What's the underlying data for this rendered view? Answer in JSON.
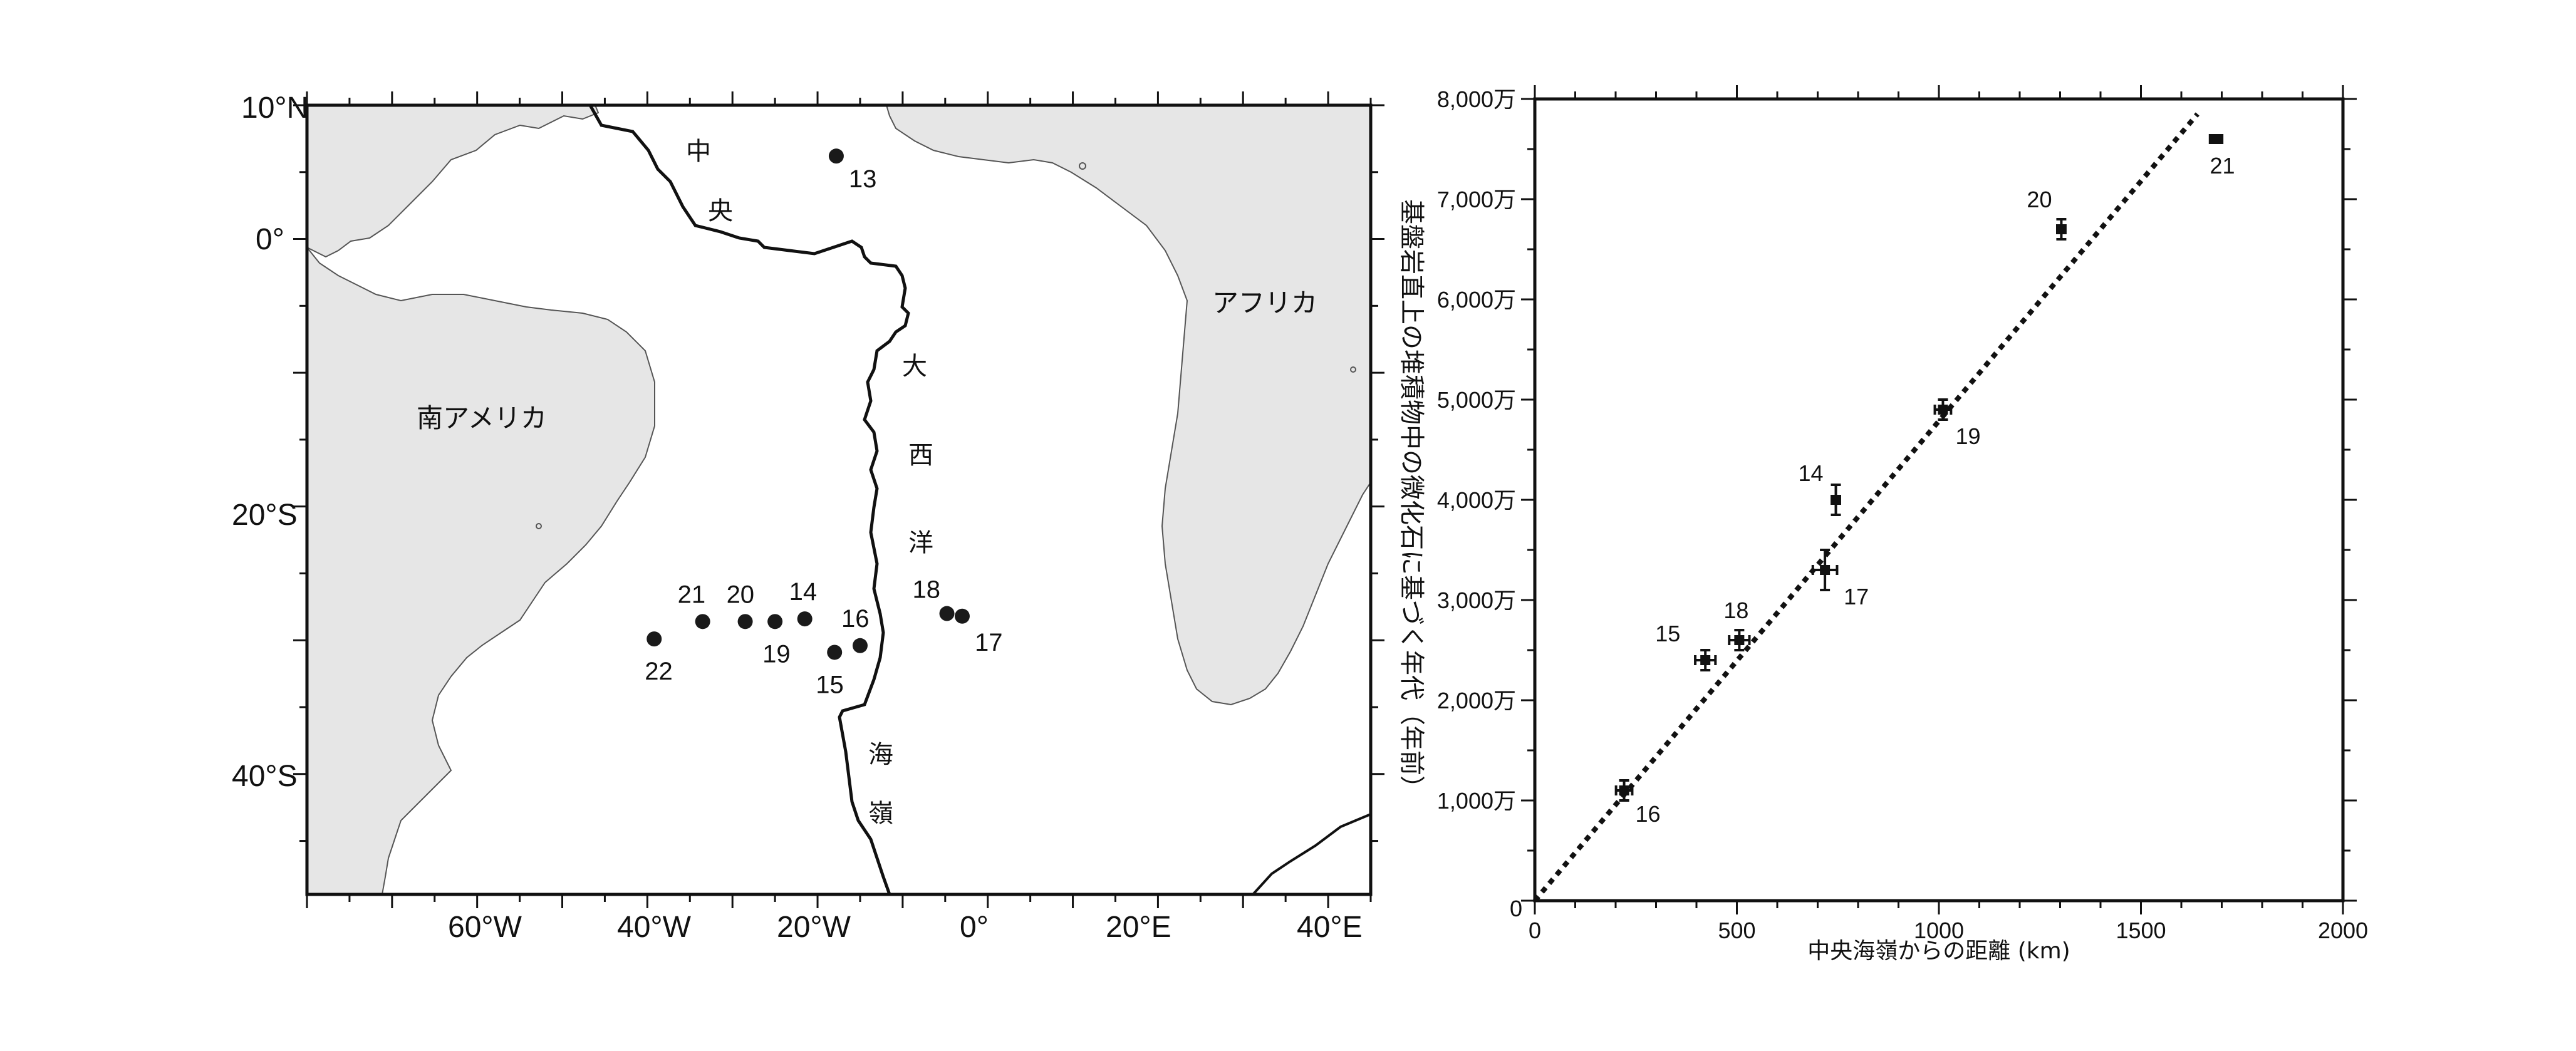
{
  "map": {
    "lat_labels": [
      "10°N",
      "0°",
      "20°S",
      "40°S"
    ],
    "lon_labels": [
      "60°W",
      "40°W",
      "20°W",
      "0°",
      "20°E",
      "40°E"
    ],
    "continent_labels": {
      "south_america": "南アメリカ",
      "africa": "アフリカ"
    },
    "ridge_label_chars": [
      "中",
      "央",
      "大",
      "西",
      "洋",
      "海",
      "嶺"
    ],
    "sites": [
      {
        "label": "13",
        "lon": -17.8,
        "lat": 6.2
      },
      {
        "label": "14",
        "lon": -21.5,
        "lat": -28.4
      },
      {
        "label": "15",
        "lon": -18.0,
        "lat": -30.9
      },
      {
        "label": "16",
        "lon": -15.0,
        "lat": -30.4
      },
      {
        "label": "17",
        "lon": -3.0,
        "lat": -28.2
      },
      {
        "label": "18",
        "lon": -4.8,
        "lat": -28.0
      },
      {
        "label": "19",
        "lon": -25.0,
        "lat": -28.6
      },
      {
        "label": "20",
        "lon": -28.5,
        "lat": -28.6
      },
      {
        "label": "21",
        "lon": -33.5,
        "lat": -28.6
      },
      {
        "label": "22",
        "lon": -39.2,
        "lat": -29.9
      }
    ]
  },
  "chart_data": {
    "type": "scatter",
    "xlabel": "中央海嶺からの距離 (km)",
    "ylabel": "基盤岩直上の堆積物中の微化石に基づく年代（年前）",
    "xlim": [
      0,
      2000
    ],
    "ylim": [
      0,
      80000000
    ],
    "x_ticks": [
      0,
      500,
      1000,
      1500,
      2000
    ],
    "x_tick_labels": [
      "0",
      "500",
      "1000",
      "1500",
      "2000"
    ],
    "y_ticks": [
      10000000,
      20000000,
      30000000,
      40000000,
      50000000,
      60000000,
      70000000,
      80000000
    ],
    "y_tick_labels": [
      "1,000万",
      "2,000万",
      "3,000万",
      "4,000万",
      "5,000万",
      "6,000万",
      "7,000万",
      "8,000万"
    ],
    "points": [
      {
        "label": "16",
        "x": 221,
        "y": 11000000,
        "xerr": 20,
        "yerr": 1000000
      },
      {
        "label": "15",
        "x": 422,
        "y": 24000000,
        "xerr": 25,
        "yerr": 1000000
      },
      {
        "label": "18",
        "x": 506,
        "y": 26000000,
        "xerr": 25,
        "yerr": 1000000
      },
      {
        "label": "14",
        "x": 745,
        "y": 40000000,
        "xerr": 10,
        "yerr": 1500000
      },
      {
        "label": "17",
        "x": 718,
        "y": 33000000,
        "xerr": 30,
        "yerr": 2000000
      },
      {
        "label": "19",
        "x": 1010,
        "y": 49000000,
        "xerr": 20,
        "yerr": 1000000
      },
      {
        "label": "20",
        "x": 1303,
        "y": 67000000,
        "xerr": 10,
        "yerr": 1000000
      },
      {
        "label": "21",
        "x": 1686,
        "y": 76000000,
        "xerr": 15,
        "yerr": 200000
      }
    ],
    "trend_line": {
      "x": [
        0,
        1640
      ],
      "y": [
        0,
        78500000
      ],
      "style": "dotted"
    },
    "grid": false
  }
}
